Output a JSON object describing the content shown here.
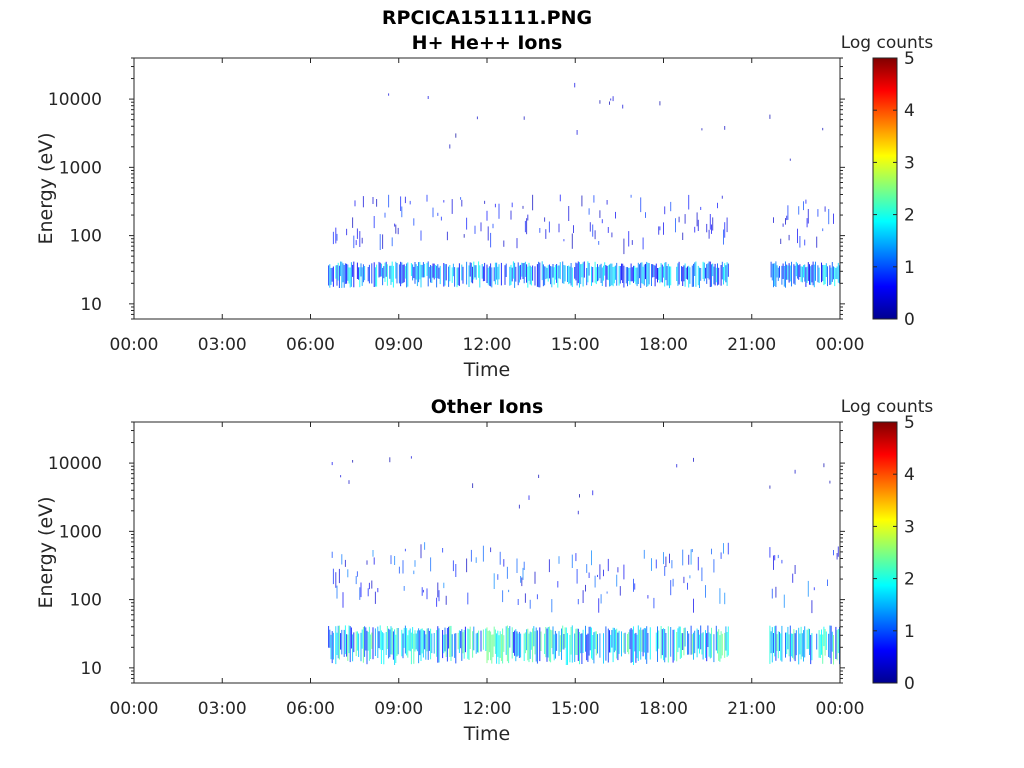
{
  "chart_data": [
    {
      "type": "heatmap",
      "title_lines": [
        "RPCICA151111.PNG",
        "H+ He++ Ions"
      ],
      "xlabel": "Time",
      "ylabel": "Energy (eV)",
      "x_ticks": [
        "00:00",
        "03:00",
        "06:00",
        "09:00",
        "12:00",
        "15:00",
        "18:00",
        "21:00",
        "00:00"
      ],
      "x_range_hours": [
        0,
        24
      ],
      "y_scale": "log",
      "y_ticks": [
        10,
        100,
        1000,
        10000
      ],
      "y_range": [
        6,
        40000
      ],
      "colorbar": {
        "label": "Log counts",
        "ticks": [
          0,
          1,
          2,
          3,
          4,
          5
        ],
        "range": [
          0,
          5
        ],
        "colormap": "jet"
      },
      "grid": false,
      "data_intervals_hours": [
        [
          6.6,
          20.2
        ],
        [
          21.6,
          24.0
        ]
      ],
      "features": [
        {
          "note": "dense band",
          "energy_eV": [
            17,
            42
          ],
          "log_counts_max": 2.0
        },
        {
          "note": "sparse streaks",
          "energy_eV": [
            42,
            400
          ],
          "log_counts_max": 1.0
        },
        {
          "note": "sparse dots",
          "energy_eV": [
            400,
            20000
          ],
          "log_counts_max": 0.5
        }
      ]
    },
    {
      "type": "heatmap",
      "title_lines": [
        "Other Ions"
      ],
      "xlabel": "Time",
      "ylabel": "Energy (eV)",
      "x_ticks": [
        "00:00",
        "03:00",
        "06:00",
        "09:00",
        "12:00",
        "15:00",
        "18:00",
        "21:00",
        "00:00"
      ],
      "x_range_hours": [
        0,
        24
      ],
      "y_scale": "log",
      "y_ticks": [
        10,
        100,
        1000,
        10000
      ],
      "y_range": [
        6,
        40000
      ],
      "colorbar": {
        "label": "Log counts",
        "ticks": [
          0,
          1,
          2,
          3,
          4,
          5
        ],
        "range": [
          0,
          5
        ],
        "colormap": "jet"
      },
      "grid": false,
      "data_intervals_hours": [
        [
          6.6,
          20.2
        ],
        [
          21.6,
          24.0
        ]
      ],
      "features": [
        {
          "note": "dense band",
          "energy_eV": [
            11,
            42
          ],
          "log_counts_max": 2.5
        },
        {
          "note": "dense streaks",
          "energy_eV": [
            42,
            700
          ],
          "log_counts_max": 1.3
        },
        {
          "note": "sparse dots",
          "energy_eV": [
            700,
            15000
          ],
          "log_counts_max": 0.6
        }
      ]
    }
  ]
}
